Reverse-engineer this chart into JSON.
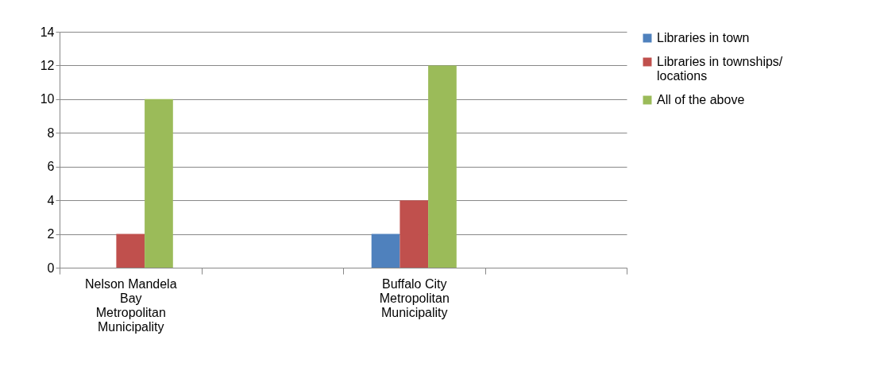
{
  "chart_data": {
    "type": "bar",
    "categories": [
      "Nelson Mandela Bay Metropolitan Municipality",
      null,
      "Buffalo City Metropolitan Municipality",
      null
    ],
    "series": [
      {
        "name": "Libraries in town",
        "color": "#4f81bd",
        "values": [
          0,
          null,
          2,
          null
        ]
      },
      {
        "name": "Libraries in townships/ locations",
        "color": "#c0504d",
        "values": [
          2,
          null,
          4,
          null
        ]
      },
      {
        "name": "All of the above",
        "color": "#9bbb59",
        "values": [
          10,
          null,
          12,
          null
        ]
      }
    ],
    "ylim": [
      0,
      14
    ],
    "yticks": [
      0,
      2,
      4,
      6,
      8,
      10,
      12,
      14
    ],
    "grid": "y",
    "legend": "right"
  }
}
